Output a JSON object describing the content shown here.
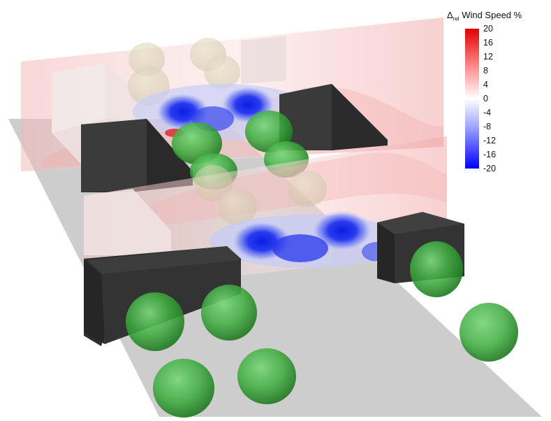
{
  "legend": {
    "symbol": "Δ",
    "subscript": "rel",
    "label": "Wind Speed %",
    "ticks": [
      "20",
      "16",
      "12",
      "8",
      "4",
      "0",
      "-4",
      "-8",
      "-12",
      "-16",
      "-20"
    ],
    "colors": {
      "max": "#e00000",
      "zero": "#ffffff",
      "min": "#0000ff"
    }
  },
  "scene_colors": {
    "ground": "#cfcfcf",
    "building": "#3c3c3c",
    "tree": "#2e9a2e",
    "plane_tint": "#f7c9c9",
    "decrease": "#1d2fe6",
    "increase": "#e02020"
  }
}
